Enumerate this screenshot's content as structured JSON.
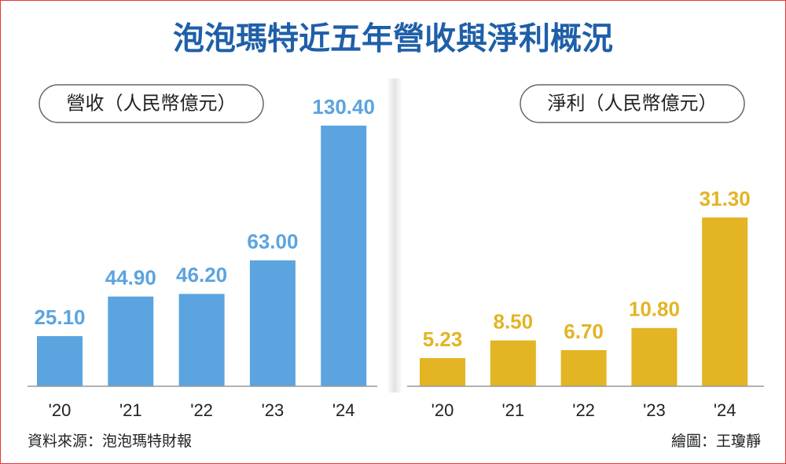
{
  "title": "泡泡瑪特近五年營收與淨利概況",
  "source": "資料來源：泡泡瑪特財報",
  "credit": "繪圖：王瓊靜",
  "chart_data": [
    {
      "type": "bar",
      "title": "營收（人民幣億元）",
      "categories": [
        "'20",
        "'21",
        "'22",
        "'23",
        "'24"
      ],
      "values": [
        25.1,
        44.9,
        46.2,
        63.0,
        130.4
      ],
      "value_labels": [
        "25.10",
        "44.90",
        "46.20",
        "63.00",
        "130.40"
      ],
      "color": "#5ba4e0"
    },
    {
      "type": "bar",
      "title": "淨利（人民幣億元）",
      "categories": [
        "'20",
        "'21",
        "'22",
        "'23",
        "'24"
      ],
      "values": [
        5.23,
        8.5,
        6.7,
        10.8,
        31.3
      ],
      "value_labels": [
        "5.23",
        "8.50",
        "6.70",
        "10.80",
        "31.30"
      ],
      "color": "#e3b424"
    }
  ]
}
